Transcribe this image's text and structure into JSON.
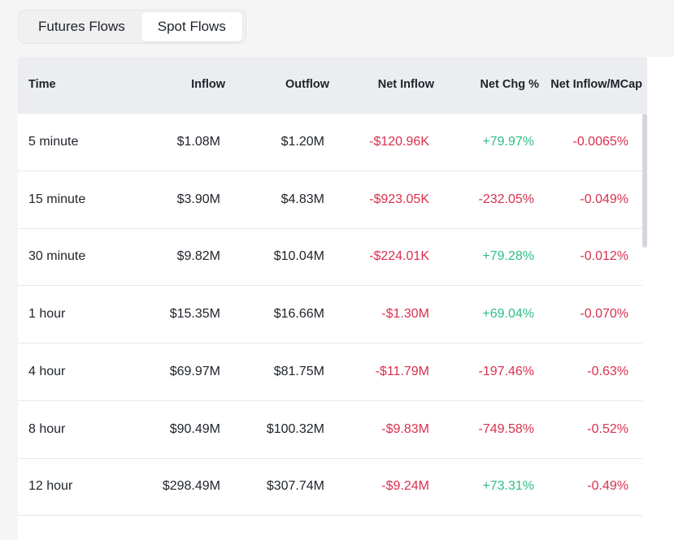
{
  "tabs": [
    {
      "label": "Futures Flows",
      "active": false
    },
    {
      "label": "Spot Flows",
      "active": true
    }
  ],
  "table": {
    "columns": [
      "Time",
      "Inflow",
      "Outflow",
      "Net Inflow",
      "Net Chg %",
      "Net Inflow/MCap"
    ],
    "rows": [
      {
        "time": "5 minute",
        "inflow": "$1.08M",
        "outflow": "$1.20M",
        "net_inflow": "-$120.96K",
        "net_chg": "+79.97%",
        "mcap": "-0.0065%"
      },
      {
        "time": "15 minute",
        "inflow": "$3.90M",
        "outflow": "$4.83M",
        "net_inflow": "-$923.05K",
        "net_chg": "-232.05%",
        "mcap": "-0.049%"
      },
      {
        "time": "30 minute",
        "inflow": "$9.82M",
        "outflow": "$10.04M",
        "net_inflow": "-$224.01K",
        "net_chg": "+79.28%",
        "mcap": "-0.012%"
      },
      {
        "time": "1 hour",
        "inflow": "$15.35M",
        "outflow": "$16.66M",
        "net_inflow": "-$1.30M",
        "net_chg": "+69.04%",
        "mcap": "-0.070%"
      },
      {
        "time": "4 hour",
        "inflow": "$69.97M",
        "outflow": "$81.75M",
        "net_inflow": "-$11.79M",
        "net_chg": "-197.46%",
        "mcap": "-0.63%"
      },
      {
        "time": "8 hour",
        "inflow": "$90.49M",
        "outflow": "$100.32M",
        "net_inflow": "-$9.83M",
        "net_chg": "-749.58%",
        "mcap": "-0.52%"
      },
      {
        "time": "12 hour",
        "inflow": "$298.49M",
        "outflow": "$307.74M",
        "net_inflow": "-$9.24M",
        "net_chg": "+73.31%",
        "mcap": "-0.49%"
      }
    ]
  },
  "colors": {
    "negative": "#d9304e",
    "positive": "#2ebd85",
    "header_bg": "#ebedf0",
    "text": "#1e2329"
  }
}
